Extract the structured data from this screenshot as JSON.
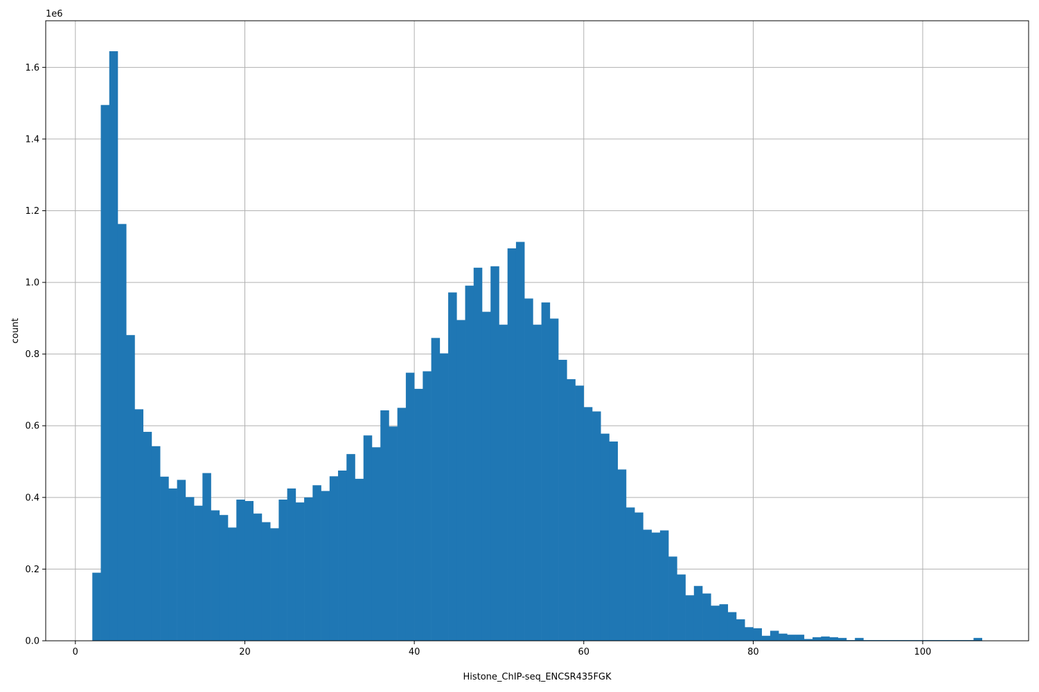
{
  "chart_data": {
    "type": "bar",
    "title": "",
    "xlabel": "Histone_ChIP-seq_ENCSR435FGK",
    "ylabel": "count",
    "y_offset_text": "1e6",
    "xlim": [
      -3.5,
      112.5
    ],
    "ylim": [
      0,
      1730000
    ],
    "bin_width": 1.0,
    "x_ticks": [
      0,
      20,
      40,
      60,
      80,
      100
    ],
    "x_tick_labels": [
      "0",
      "20",
      "40",
      "60",
      "80",
      "100"
    ],
    "y_ticks": [
      0,
      200000,
      400000,
      600000,
      800000,
      1000000,
      1200000,
      1400000,
      1600000
    ],
    "y_tick_labels": [
      "0.0",
      "0.2",
      "0.4",
      "0.6",
      "0.8",
      "1.0",
      "1.2",
      "1.4",
      "1.6"
    ],
    "grid": true,
    "bar_color": "#1f77b4",
    "bins_start": [
      2,
      3,
      4,
      5,
      6,
      7,
      8,
      9,
      10,
      11,
      12,
      13,
      14,
      15,
      16,
      17,
      18,
      19,
      20,
      21,
      22,
      23,
      24,
      25,
      26,
      27,
      28,
      29,
      30,
      31,
      32,
      33,
      34,
      35,
      36,
      37,
      38,
      39,
      40,
      41,
      42,
      43,
      44,
      45,
      46,
      47,
      48,
      49,
      50,
      51,
      52,
      53,
      54,
      55,
      56,
      57,
      58,
      59,
      60,
      61,
      62,
      63,
      64,
      65,
      66,
      67,
      68,
      69,
      70,
      71,
      72,
      73,
      74,
      75,
      76,
      77,
      78,
      79,
      80,
      81,
      82,
      83,
      84,
      85,
      86,
      87,
      88,
      89,
      90,
      91,
      92,
      93,
      94,
      95,
      96,
      97,
      98,
      99,
      100,
      101,
      102,
      103,
      104,
      105,
      106
    ],
    "values": [
      190000,
      1495000,
      1645000,
      1163000,
      853000,
      646000,
      583000,
      543000,
      458000,
      425000,
      449000,
      401000,
      377000,
      468000,
      364000,
      351000,
      316000,
      394000,
      390000,
      355000,
      331000,
      314000,
      394000,
      425000,
      386000,
      400000,
      434000,
      418000,
      459000,
      475000,
      521000,
      452000,
      573000,
      540000,
      643000,
      598000,
      650000,
      748000,
      703000,
      752000,
      845000,
      802000,
      972000,
      895000,
      991000,
      1041000,
      918000,
      1045000,
      882000,
      1095000,
      1113000,
      955000,
      882000,
      944000,
      899000,
      784000,
      730000,
      712000,
      652000,
      640000,
      578000,
      556000,
      478000,
      372000,
      358000,
      310000,
      302000,
      308000,
      235000,
      185000,
      127000,
      153000,
      132000,
      98000,
      102000,
      80000,
      60000,
      38000,
      35000,
      14000,
      28000,
      20000,
      17000,
      17000,
      5000,
      10000,
      12000,
      10000,
      8000,
      2000,
      8000,
      2000,
      2000,
      2000,
      2000,
      2000,
      2000,
      2000,
      2000,
      2000,
      2000,
      2000,
      2000,
      2000,
      8000
    ]
  }
}
